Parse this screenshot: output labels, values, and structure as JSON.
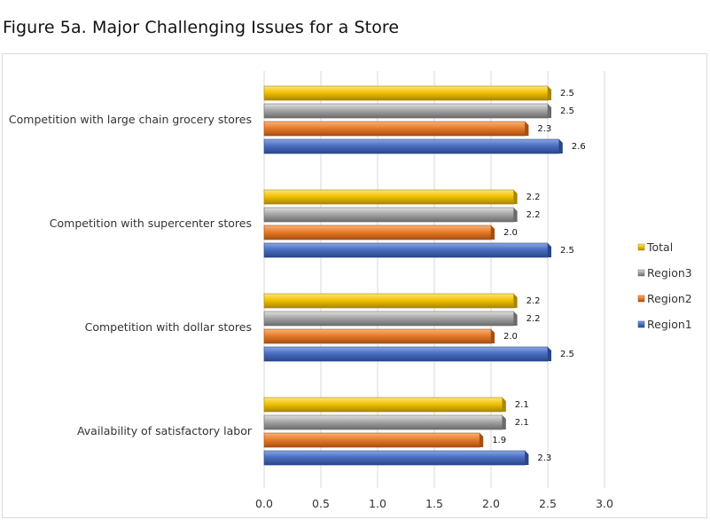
{
  "title": "Figure 5a. Major Challenging Issues for a Store",
  "chart_data": {
    "type": "bar",
    "orientation": "horizontal",
    "title": "",
    "categories": [
      "Competition with large chain grocery stores",
      "Competition with supercenter stores",
      "Competition with dollar stores",
      "Availability of satisfactory labor"
    ],
    "series": [
      {
        "name": "Total",
        "color": "#f2c200",
        "dark": "#a88600",
        "light": "#ffe680",
        "values": [
          2.5,
          2.2,
          2.2,
          2.1
        ]
      },
      {
        "name": "Region3",
        "color": "#a6a6a6",
        "dark": "#6b6b6b",
        "light": "#e0e0e0",
        "values": [
          2.5,
          2.2,
          2.2,
          2.1
        ]
      },
      {
        "name": "Region2",
        "color": "#e87d2b",
        "dark": "#a54f12",
        "light": "#f8b27a",
        "values": [
          2.3,
          2.0,
          2.0,
          1.9
        ]
      },
      {
        "name": "Region1",
        "color": "#4a6fc2",
        "dark": "#2a4687",
        "light": "#8aa6e4",
        "values": [
          2.6,
          2.5,
          2.5,
          2.3
        ]
      }
    ],
    "data_labels": [
      [
        "2.5",
        "2.5",
        "2.3",
        "2.6"
      ],
      [
        "2.2",
        "2.2",
        "2.0",
        "2.5"
      ],
      [
        "2.2",
        "2.2",
        "2.0",
        "2.5"
      ],
      [
        "2.1",
        "2.1",
        "1.9",
        "2.3"
      ]
    ],
    "xticks": [
      "0.0",
      "0.5",
      "1.0",
      "1.5",
      "2.0",
      "2.5",
      "3.0"
    ],
    "xlim": [
      0,
      3.0
    ],
    "xlabel": "",
    "ylabel": "",
    "grid": "vertical",
    "legend_position": "right",
    "legend_order": [
      "Total",
      "Region3",
      "Region2",
      "Region1"
    ]
  }
}
